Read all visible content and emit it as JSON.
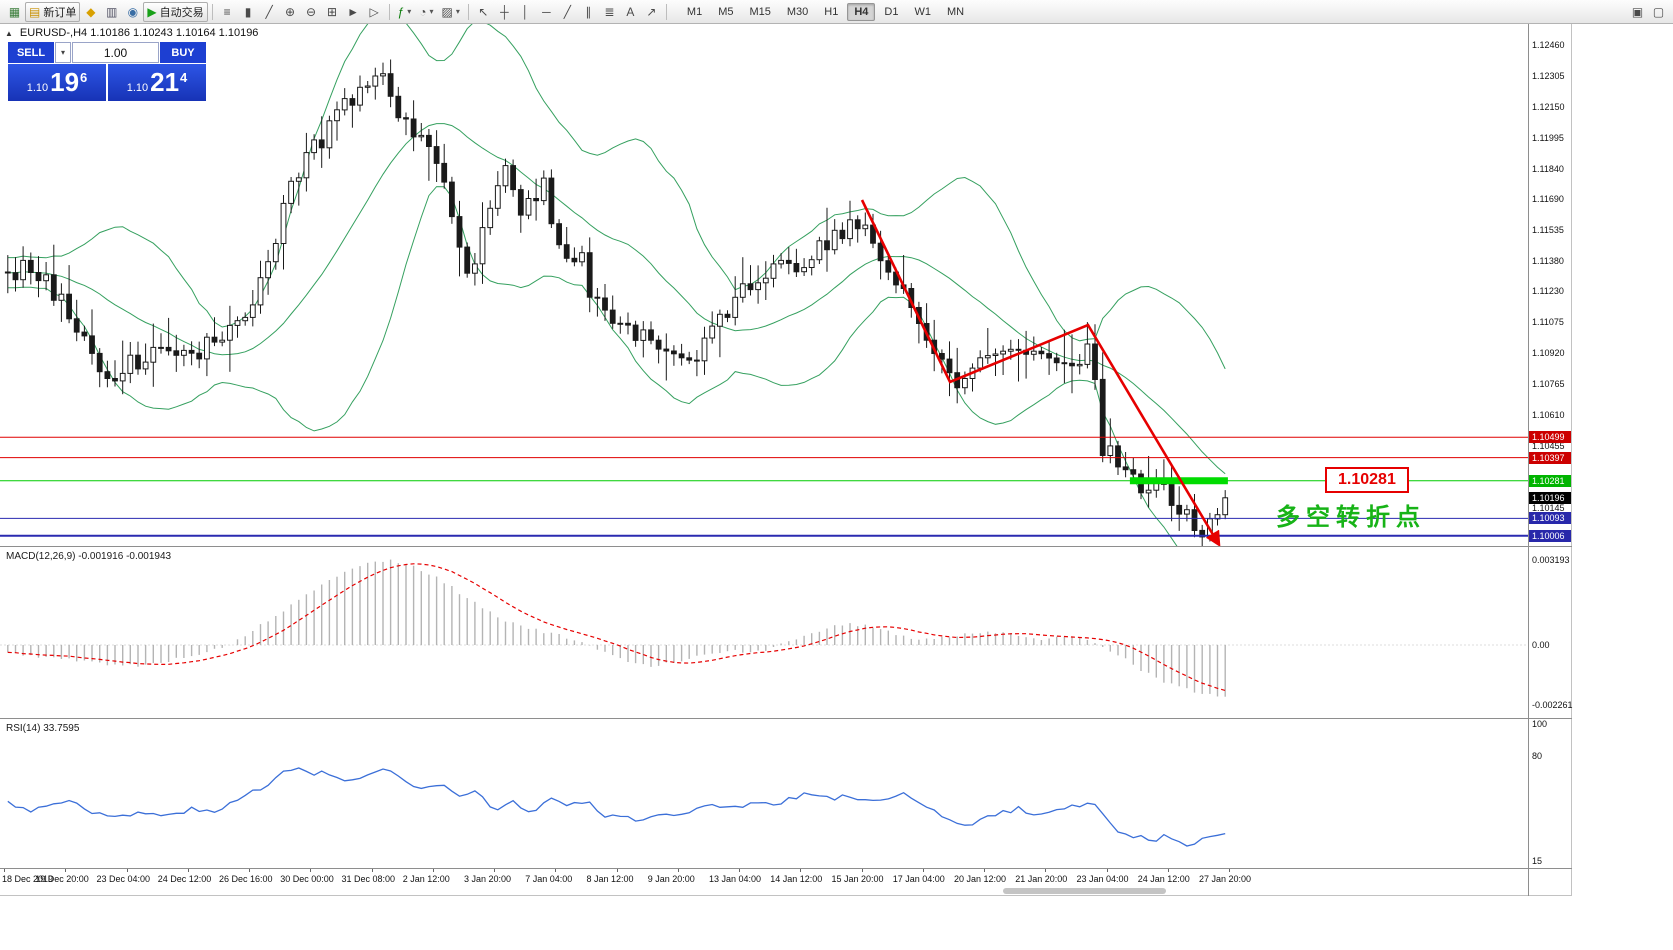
{
  "colors": {
    "bollinger": "#35a05f",
    "trendline": "#e60000",
    "green_segment": "#00dc00",
    "macd_signal": "#e60000",
    "macd_histogram": "#b4b4b4",
    "rsi": "#3b6fd8",
    "panel_blue": "#1d3fd2"
  },
  "toolbar": {
    "dropdown_glyph": "▾",
    "groups": [
      {
        "items": [
          {
            "name": "new-chart",
            "glyph": "▦",
            "color": "#3a7d3a"
          },
          {
            "name": "new-order",
            "glyph": "▤",
            "label": "新订单",
            "color": "#c89000"
          },
          {
            "name": "mql-community",
            "glyph": "◆",
            "color": "#d8a000"
          },
          {
            "name": "data-window",
            "glyph": "▥",
            "color": "#556"
          },
          {
            "name": "strategy-navigator",
            "glyph": "◉",
            "color": "#3a6ea5"
          },
          {
            "name": "autotrading",
            "glyph": "▶",
            "label": "自动交易",
            "color": "#18a018"
          }
        ]
      },
      {
        "items": [
          {
            "name": "bar-chart",
            "glyph": "≡"
          },
          {
            "name": "candlestick-chart",
            "glyph": "▮"
          },
          {
            "name": "line-chart",
            "glyph": "╱"
          },
          {
            "name": "zoom-in",
            "glyph": "⊕"
          },
          {
            "name": "zoom-out",
            "glyph": "⊖"
          },
          {
            "name": "tile-windows",
            "glyph": "⊞"
          },
          {
            "name": "auto-scroll",
            "glyph": "►"
          },
          {
            "name": "chart-shift",
            "glyph": "▷"
          }
        ]
      },
      {
        "items": [
          {
            "name": "indicators",
            "glyph": "ƒ",
            "color": "#0a7d0a",
            "dropdown": true
          },
          {
            "name": "periods",
            "glyph": "◔",
            "dropdown": true
          },
          {
            "name": "templates",
            "glyph": "▨",
            "dropdown": true
          }
        ]
      },
      {
        "items": [
          {
            "name": "cursor",
            "glyph": "↖"
          },
          {
            "name": "crosshair",
            "glyph": "┼"
          },
          {
            "name": "vertical-line",
            "glyph": "│"
          },
          {
            "name": "horizontal-line",
            "glyph": "─"
          },
          {
            "name": "trendline-tool",
            "glyph": "╱"
          },
          {
            "name": "channel-tool",
            "glyph": "∥"
          },
          {
            "name": "fibonacci-tool",
            "glyph": "≣"
          },
          {
            "name": "text-tool",
            "glyph": "A"
          },
          {
            "name": "arrows-tool",
            "glyph": "↗"
          }
        ]
      }
    ],
    "timeframes": [
      "M1",
      "M5",
      "M15",
      "M30",
      "H1",
      "H4",
      "D1",
      "W1",
      "MN"
    ],
    "active_timeframe": "H4",
    "right_icons": [
      {
        "name": "new-window",
        "glyph": "▣"
      },
      {
        "name": "window-arrange",
        "glyph": "▢"
      }
    ]
  },
  "chart_header_icon": "▲",
  "chart_header": "EURUSD-,H4  1.10186 1.10243 1.10164 1.10196",
  "trade_panel": {
    "sell_label": "SELL",
    "buy_label": "BUY",
    "volume": "1.00",
    "dropdown_glyph": "▾",
    "sell_big": "1.10",
    "sell_pips": "19",
    "sell_point": "6",
    "buy_big": "1.10",
    "buy_pips": "21",
    "buy_point": "4"
  },
  "price_axis": {
    "scale_labels": [
      "1.12460",
      "1.12305",
      "1.12150",
      "1.11995",
      "1.11840",
      "1.11690",
      "1.11535",
      "1.11380",
      "1.11230",
      "1.11075",
      "1.10920",
      "1.10765",
      "1.10610",
      "1.10455",
      "1.10145"
    ],
    "tags": [
      {
        "text": "1.10499",
        "color": "#cc0000"
      },
      {
        "text": "1.10397",
        "color": "#cc0000"
      },
      {
        "text": "1.10281",
        "color": "#00b400"
      },
      {
        "text": "1.10196",
        "color": "#000000"
      },
      {
        "text": "1.10093",
        "color": "#2828aa"
      },
      {
        "text": "1.10006",
        "color": "#2828aa"
      }
    ]
  },
  "annotations": {
    "price_label": "1.10281",
    "cn_text": "多空转折点"
  },
  "macd": {
    "label": "MACD(12,26,9) -0.001916 -0.001943",
    "axis": [
      "0.003193",
      "0.00",
      "-0.002261"
    ],
    "anchors": [
      [
        0.0,
        -0.0003
      ],
      [
        0.04,
        -0.0005
      ],
      [
        0.08,
        -0.0007
      ],
      [
        0.11,
        -0.0008
      ],
      [
        0.14,
        -0.0005
      ],
      [
        0.17,
        -0.0002
      ],
      [
        0.19,
        0.0002
      ],
      [
        0.21,
        0.0008
      ],
      [
        0.23,
        0.0014
      ],
      [
        0.25,
        0.002
      ],
      [
        0.27,
        0.0026
      ],
      [
        0.29,
        0.003
      ],
      [
        0.31,
        0.0032
      ],
      [
        0.33,
        0.003
      ],
      [
        0.35,
        0.0026
      ],
      [
        0.37,
        0.002
      ],
      [
        0.39,
        0.0014
      ],
      [
        0.41,
        0.0009
      ],
      [
        0.43,
        0.0006
      ],
      [
        0.45,
        0.0004
      ],
      [
        0.47,
        0.0001
      ],
      [
        0.49,
        -0.0003
      ],
      [
        0.51,
        -0.0006
      ],
      [
        0.53,
        -0.0008
      ],
      [
        0.55,
        -0.0006
      ],
      [
        0.57,
        -0.0004
      ],
      [
        0.59,
        -0.0002
      ],
      [
        0.61,
        -0.0003
      ],
      [
        0.63,
        -0.0001
      ],
      [
        0.65,
        0.0003
      ],
      [
        0.67,
        0.0006
      ],
      [
        0.69,
        0.0008
      ],
      [
        0.71,
        0.0007
      ],
      [
        0.73,
        0.0004
      ],
      [
        0.75,
        0.0002
      ],
      [
        0.77,
        0.0003
      ],
      [
        0.79,
        0.0004
      ],
      [
        0.81,
        0.0005
      ],
      [
        0.83,
        0.0004
      ],
      [
        0.85,
        0.0002
      ],
      [
        0.87,
        0.0003
      ],
      [
        0.89,
        0.0002
      ],
      [
        0.91,
        -0.0003
      ],
      [
        0.93,
        -0.0009
      ],
      [
        0.95,
        -0.0014
      ],
      [
        0.97,
        -0.0017
      ],
      [
        0.99,
        -0.0019
      ],
      [
        1.0,
        -0.001916
      ]
    ]
  },
  "rsi": {
    "label": "RSI(14) 33.7595",
    "axis": [
      "100",
      "80",
      "15"
    ],
    "anchors": [
      [
        0.0,
        52
      ],
      [
        0.02,
        47
      ],
      [
        0.05,
        54
      ],
      [
        0.07,
        46
      ],
      [
        0.09,
        42
      ],
      [
        0.11,
        46
      ],
      [
        0.13,
        43
      ],
      [
        0.15,
        48
      ],
      [
        0.17,
        45
      ],
      [
        0.19,
        55
      ],
      [
        0.21,
        62
      ],
      [
        0.225,
        70
      ],
      [
        0.24,
        73
      ],
      [
        0.25,
        68
      ],
      [
        0.26,
        72
      ],
      [
        0.28,
        64
      ],
      [
        0.295,
        69
      ],
      [
        0.31,
        73
      ],
      [
        0.325,
        65
      ],
      [
        0.34,
        60
      ],
      [
        0.355,
        63
      ],
      [
        0.37,
        55
      ],
      [
        0.385,
        58
      ],
      [
        0.4,
        48
      ],
      [
        0.415,
        52
      ],
      [
        0.43,
        45
      ],
      [
        0.445,
        55
      ],
      [
        0.46,
        50
      ],
      [
        0.475,
        53
      ],
      [
        0.49,
        42
      ],
      [
        0.505,
        45
      ],
      [
        0.52,
        40
      ],
      [
        0.535,
        44
      ],
      [
        0.55,
        42
      ],
      [
        0.565,
        47
      ],
      [
        0.58,
        50
      ],
      [
        0.6,
        48
      ],
      [
        0.615,
        53
      ],
      [
        0.63,
        50
      ],
      [
        0.645,
        55
      ],
      [
        0.66,
        58
      ],
      [
        0.675,
        54
      ],
      [
        0.69,
        57
      ],
      [
        0.705,
        52
      ],
      [
        0.72,
        55
      ],
      [
        0.735,
        58
      ],
      [
        0.75,
        50
      ],
      [
        0.765,
        45
      ],
      [
        0.78,
        40
      ],
      [
        0.79,
        36
      ],
      [
        0.8,
        42
      ],
      [
        0.815,
        45
      ],
      [
        0.83,
        48
      ],
      [
        0.845,
        44
      ],
      [
        0.86,
        47
      ],
      [
        0.875,
        50
      ],
      [
        0.89,
        52
      ],
      [
        0.9,
        45
      ],
      [
        0.91,
        35
      ],
      [
        0.92,
        30
      ],
      [
        0.93,
        33
      ],
      [
        0.94,
        28
      ],
      [
        0.95,
        31
      ],
      [
        0.96,
        27
      ],
      [
        0.97,
        25
      ],
      [
        0.98,
        30
      ],
      [
        0.99,
        32
      ],
      [
        1.0,
        33.76
      ]
    ]
  },
  "time_axis": [
    "18 Dec 2019",
    "19 Dec 20:00",
    "23 Dec 04:00",
    "24 Dec 12:00",
    "26 Dec 16:00",
    "30 Dec 00:00",
    "31 Dec 08:00",
    "2 Jan 12:00",
    "3 Jan 20:00",
    "7 Jan 04:00",
    "8 Jan 12:00",
    "9 Jan 20:00",
    "13 Jan 04:00",
    "14 Jan 12:00",
    "15 Jan 20:00",
    "17 Jan 04:00",
    "20 Jan 12:00",
    "21 Jan 20:00",
    "23 Jan 04:00",
    "24 Jan 12:00",
    "27 Jan 20:00"
  ],
  "chart_data": {
    "type": "candlestick",
    "symbol": "EURUSD-",
    "timeframe": "H4",
    "ohlc_header": {
      "open": "1.10186",
      "high": "1.10243",
      "low": "1.10164",
      "close": "1.10196"
    },
    "candle_count": 160,
    "last_close": 1.10196,
    "price_axis_range": [
      1.0995,
      1.1258
    ],
    "bollinger": {
      "period": 20,
      "deviation": 2
    },
    "price_path": [
      [
        0.0,
        1.1132
      ],
      [
        0.02,
        1.1136
      ],
      [
        0.045,
        1.1118
      ],
      [
        0.061,
        1.1103
      ],
      [
        0.078,
        1.1081
      ],
      [
        0.094,
        1.1083
      ],
      [
        0.11,
        1.1091
      ],
      [
        0.122,
        1.1095
      ],
      [
        0.139,
        1.1089
      ],
      [
        0.155,
        1.1093
      ],
      [
        0.171,
        1.1097
      ],
      [
        0.188,
        1.1102
      ],
      [
        0.204,
        1.1122
      ],
      [
        0.22,
        1.1152
      ],
      [
        0.237,
        1.1182
      ],
      [
        0.253,
        1.1197
      ],
      [
        0.269,
        1.1207
      ],
      [
        0.286,
        1.1222
      ],
      [
        0.302,
        1.1232
      ],
      [
        0.318,
        1.1217
      ],
      [
        0.335,
        1.1197
      ],
      [
        0.351,
        1.1194
      ],
      [
        0.367,
        1.1152
      ],
      [
        0.38,
        1.1132
      ],
      [
        0.393,
        1.1158
      ],
      [
        0.408,
        1.1185
      ],
      [
        0.424,
        1.1162
      ],
      [
        0.441,
        1.1175
      ],
      [
        0.453,
        1.1142
      ],
      [
        0.469,
        1.1143
      ],
      [
        0.482,
        1.1117
      ],
      [
        0.498,
        1.1107
      ],
      [
        0.514,
        1.1102
      ],
      [
        0.531,
        1.1097
      ],
      [
        0.547,
        1.1095
      ],
      [
        0.563,
        1.1091
      ],
      [
        0.58,
        1.1102
      ],
      [
        0.596,
        1.1117
      ],
      [
        0.612,
        1.1127
      ],
      [
        0.629,
        1.1137
      ],
      [
        0.645,
        1.1132
      ],
      [
        0.661,
        1.1142
      ],
      [
        0.678,
        1.1152
      ],
      [
        0.694,
        1.1155
      ],
      [
        0.706,
        1.1152
      ],
      [
        0.718,
        1.1137
      ],
      [
        0.735,
        1.1127
      ],
      [
        0.751,
        1.1102
      ],
      [
        0.767,
        1.1087
      ],
      [
        0.78,
        1.108
      ],
      [
        0.796,
        1.1087
      ],
      [
        0.812,
        1.1092
      ],
      [
        0.829,
        1.1097
      ],
      [
        0.845,
        1.1092
      ],
      [
        0.861,
        1.1085
      ],
      [
        0.878,
        1.1088
      ],
      [
        0.89,
        1.1097
      ],
      [
        0.898,
        1.1045
      ],
      [
        0.91,
        1.1042
      ],
      [
        0.922,
        1.1027
      ],
      [
        0.935,
        1.1022
      ],
      [
        0.947,
        1.1025
      ],
      [
        0.959,
        1.1019
      ],
      [
        0.971,
        1.1007
      ],
      [
        0.984,
        1.1005
      ],
      [
        1.0,
        1.10196
      ]
    ],
    "hlines": [
      {
        "price": 1.10499,
        "color": "#e00000",
        "width": 1
      },
      {
        "price": 1.10397,
        "color": "#e00000",
        "width": 1
      },
      {
        "price": 1.10281,
        "color": "#00cc00",
        "width": 1
      },
      {
        "price": 1.10093,
        "color": "#2a2ab0",
        "width": 1
      },
      {
        "price": 1.10006,
        "color": "#2a2ab0",
        "width": 2
      }
    ],
    "trendline": [
      [
        0.7037,
        1.11685
      ],
      [
        0.7755,
        1.10775
      ],
      [
        0.8882,
        1.1106
      ],
      [
        0.9943,
        1.0997
      ]
    ],
    "green_segment": {
      "t1": 0.9224,
      "t2": 1.0024,
      "price": 1.10281
    }
  }
}
